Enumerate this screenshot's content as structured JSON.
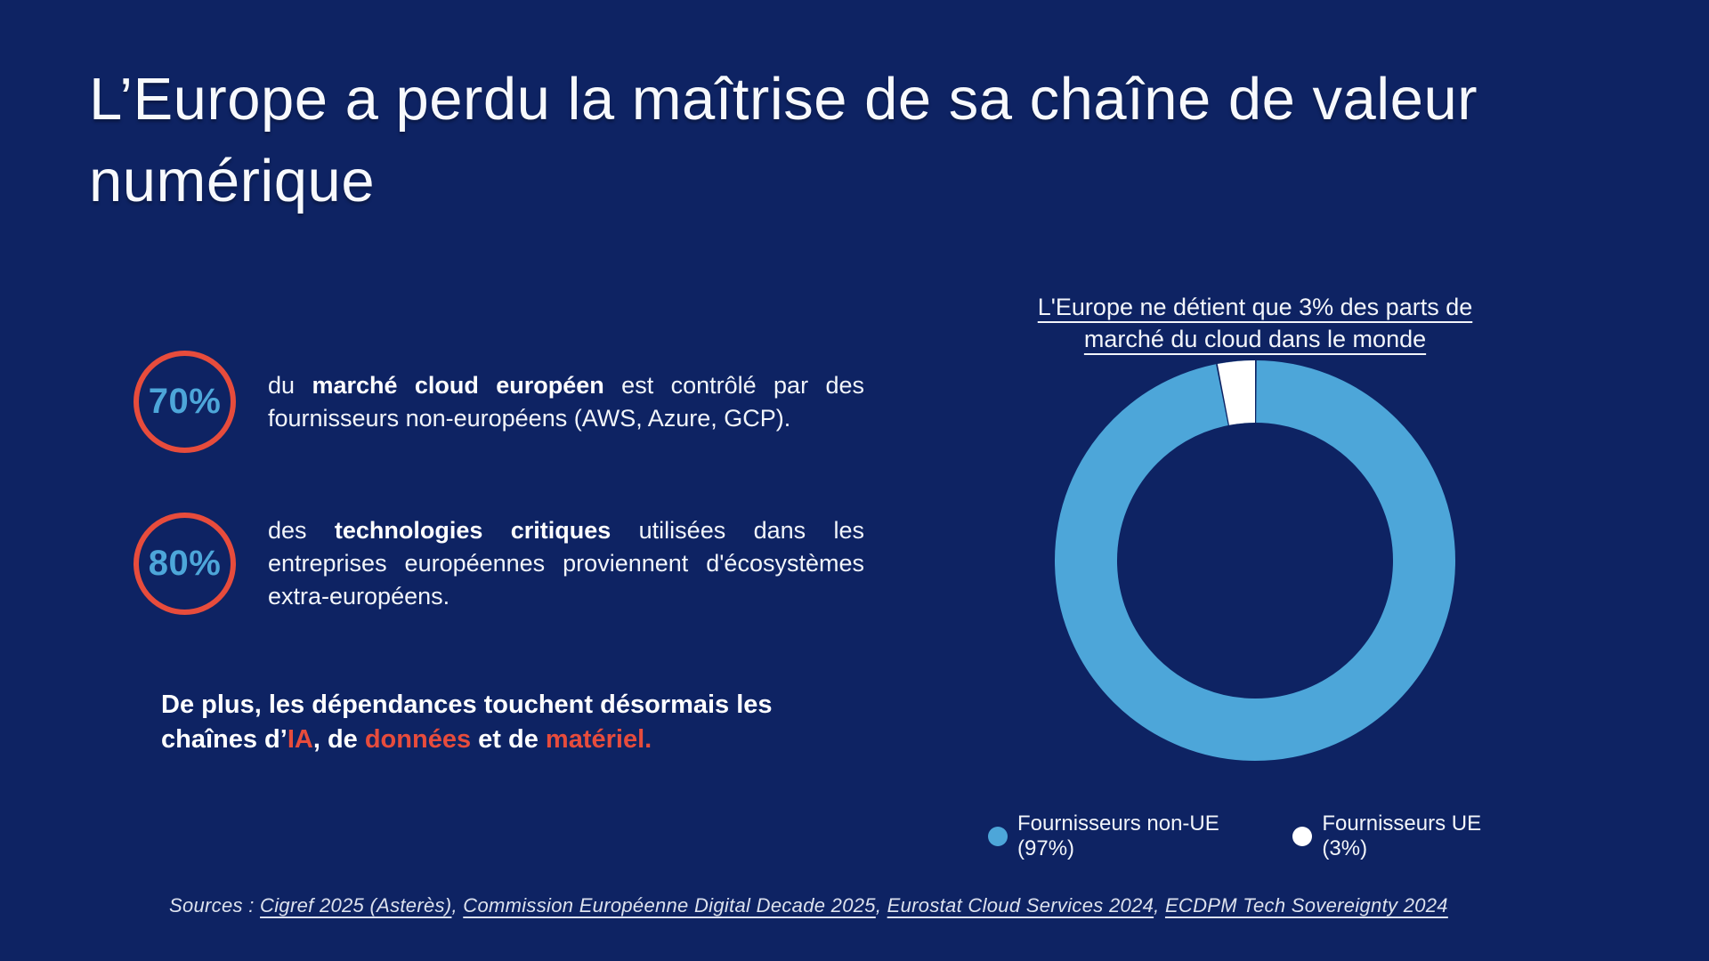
{
  "colors": {
    "background": "#0E2363",
    "accent_blue": "#4DA6D9",
    "accent_red": "#E74C3C",
    "text": "#F2F5FA"
  },
  "title": "L’Europe a perdu la maîtrise de sa chaîne de valeur\nnumérique",
  "stats": [
    {
      "value": "70%",
      "prefix": "du ",
      "bold": "marché cloud européen",
      "suffix": " est contrôlé par des fournisseurs non-européens (AWS, Azure, GCP)."
    },
    {
      "value": "80%",
      "prefix": "des ",
      "bold": "technologies critiques",
      "suffix": " utilisées dans les entreprises européennes proviennent d'écosystèmes extra-européens."
    }
  ],
  "statement": {
    "segments": [
      {
        "text": "De plus, les dépendances touchent désormais les chaînes d’",
        "color": "#FFFFFF"
      },
      {
        "text": "IA",
        "color": "#E74C3C"
      },
      {
        "text": ", de ",
        "color": "#FFFFFF"
      },
      {
        "text": "données",
        "color": "#E74C3C"
      },
      {
        "text": " et de ",
        "color": "#FFFFFF"
      },
      {
        "text": "matériel.",
        "color": "#E74C3C"
      }
    ]
  },
  "chart": {
    "title": "L'Europe ne détient que 3% des parts de\nmarché du cloud dans le monde",
    "legend": [
      {
        "label": "Fournisseurs non-UE (97%)",
        "color": "#4DA6D9"
      },
      {
        "label": "Fournisseurs UE (3%)",
        "color": "#FFFFFF"
      }
    ]
  },
  "chart_data": {
    "type": "pie",
    "subtype": "donut",
    "title": "L'Europe ne détient que 3% des parts de marché du cloud dans le monde",
    "categories": [
      "Fournisseurs non-UE",
      "Fournisseurs UE"
    ],
    "values": [
      97,
      3
    ],
    "unit": "%",
    "colors": [
      "#4DA6D9",
      "#FFFFFF"
    ],
    "slice_labels": [
      "Fournisseurs non-UE (97%)",
      "Fournisseurs UE (3%)"
    ],
    "legend_position": "bottom",
    "start_angle_deg": 0,
    "donut_inner_ratio": 0.69
  },
  "sources": {
    "label": "Sources : ",
    "separator": ", ",
    "links": [
      "Cigref 2025 (Asterès)",
      "Commission Européenne Digital Decade 2025",
      "Eurostat Cloud Services 2024",
      "ECDPM Tech Sovereignty 2024"
    ]
  }
}
